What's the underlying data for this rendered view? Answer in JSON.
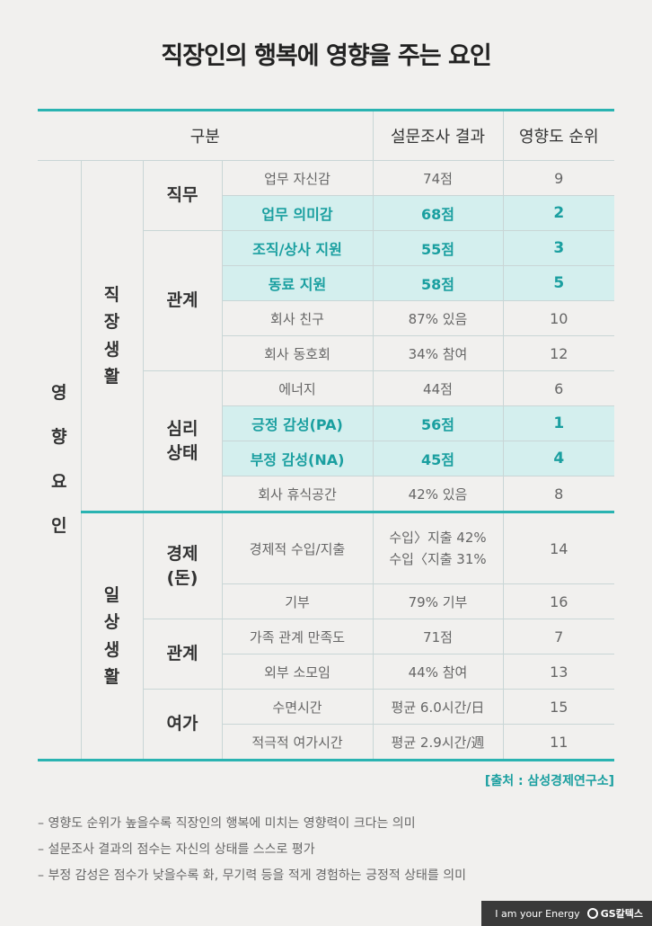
{
  "title": "직장인의 행복에 영향을 주는 요인",
  "headers": [
    "구분",
    "설문조사 결과",
    "영향도 순위"
  ],
  "factor_label": [
    "영",
    "향",
    "요",
    "인"
  ],
  "work_life_label": [
    "직",
    "장",
    "생",
    "활"
  ],
  "daily_life_label": [
    "일",
    "상",
    "생",
    "활"
  ],
  "groups": {
    "job": "직무",
    "relation": "관계",
    "psych_1": "심리",
    "psych_2": "상태",
    "economy_1": "경제",
    "economy_2": "(돈)",
    "relation2": "관계",
    "leisure": "여가"
  },
  "rows": [
    {
      "item": "업무 자신감",
      "result": "74점",
      "rank": "9"
    },
    {
      "item": "업무 의미감",
      "result": "68점",
      "rank": "2"
    },
    {
      "item": "조직/상사 지원",
      "result": "55점",
      "rank": "3"
    },
    {
      "item": "동료 지원",
      "result": "58점",
      "rank": "5"
    },
    {
      "item": "회사 친구",
      "result": "87% 있음",
      "rank": "10"
    },
    {
      "item": "회사 동호회",
      "result": "34% 참여",
      "rank": "12"
    },
    {
      "item": "에너지",
      "result": "44점",
      "rank": "6"
    },
    {
      "item": "긍정 감성(PA)",
      "result": "56점",
      "rank": "1"
    },
    {
      "item": "부정 감성(NA)",
      "result": "45점",
      "rank": "4"
    },
    {
      "item": "회사 휴식공간",
      "result": "42% 있음",
      "rank": "8"
    },
    {
      "item": "경제적 수입/지출",
      "result_1": "수입〉지출 42%",
      "result_2": "수입〈지출 31%",
      "rank": "14"
    },
    {
      "item": "기부",
      "result": "79% 기부",
      "rank": "16"
    },
    {
      "item": "가족 관계 만족도",
      "result": "71점",
      "rank": "7"
    },
    {
      "item": "외부 소모임",
      "result": "44% 참여",
      "rank": "13"
    },
    {
      "item": "수면시간",
      "result": "평균 6.0시간/日",
      "rank": "15"
    },
    {
      "item": "적극적 여가시간",
      "result": "평균 2.9시간/週",
      "rank": "11"
    }
  ],
  "source": "[출처 : 삼성경제연구소]",
  "notes": [
    "– 영향도 순위가 높을수록 직장인의 행복에 미치는 영향력이 크다는 의미",
    "– 설문조사 결과의 점수는 자신의 상태를 스스로 평가",
    "– 부정 감성은 점수가 낮을수록 화, 무기력 등을 적게 경험하는 긍정적 상태를 의미"
  ],
  "brand": {
    "slogan": "I am your Energy",
    "logo": "GS칼텍스"
  },
  "colors": {
    "accent": "#2ab3b1",
    "highlight": "#d4efee"
  }
}
